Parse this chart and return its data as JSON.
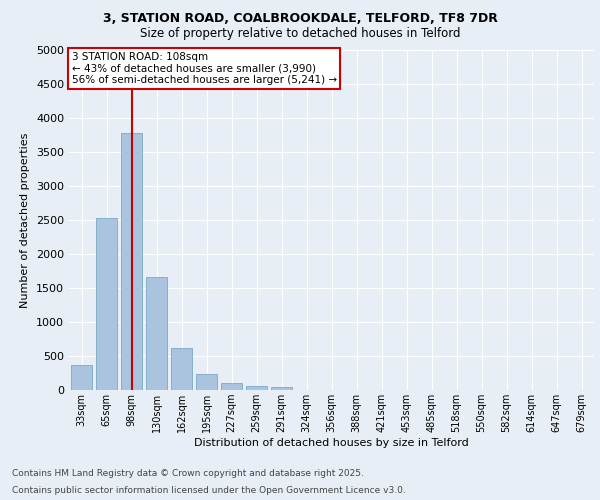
{
  "title_line1": "3, STATION ROAD, COALBROOKDALE, TELFORD, TF8 7DR",
  "title_line2": "Size of property relative to detached houses in Telford",
  "xlabel": "Distribution of detached houses by size in Telford",
  "ylabel": "Number of detached properties",
  "categories": [
    "33sqm",
    "65sqm",
    "98sqm",
    "130sqm",
    "162sqm",
    "195sqm",
    "227sqm",
    "259sqm",
    "291sqm",
    "324sqm",
    "356sqm",
    "388sqm",
    "421sqm",
    "453sqm",
    "485sqm",
    "518sqm",
    "550sqm",
    "582sqm",
    "614sqm",
    "647sqm",
    "679sqm"
  ],
  "values": [
    375,
    2530,
    3775,
    1660,
    620,
    240,
    100,
    55,
    50,
    0,
    0,
    0,
    0,
    0,
    0,
    0,
    0,
    0,
    0,
    0,
    0
  ],
  "bar_color": "#aac4e0",
  "bar_edgecolor": "#6a9fc0",
  "vline_x_index": 2,
  "vline_color": "#cc0000",
  "annotation_text": "3 STATION ROAD: 108sqm\n← 43% of detached houses are smaller (3,990)\n56% of semi-detached houses are larger (5,241) →",
  "annotation_box_color": "#ffffff",
  "annotation_box_edgecolor": "#cc0000",
  "ylim": [
    0,
    5000
  ],
  "yticks": [
    0,
    500,
    1000,
    1500,
    2000,
    2500,
    3000,
    3500,
    4000,
    4500,
    5000
  ],
  "background_color": "#e8eef5",
  "plot_background": "#e8eef5",
  "grid_color": "#ffffff",
  "footer_line1": "Contains HM Land Registry data © Crown copyright and database right 2025.",
  "footer_line2": "Contains public sector information licensed under the Open Government Licence v3.0."
}
